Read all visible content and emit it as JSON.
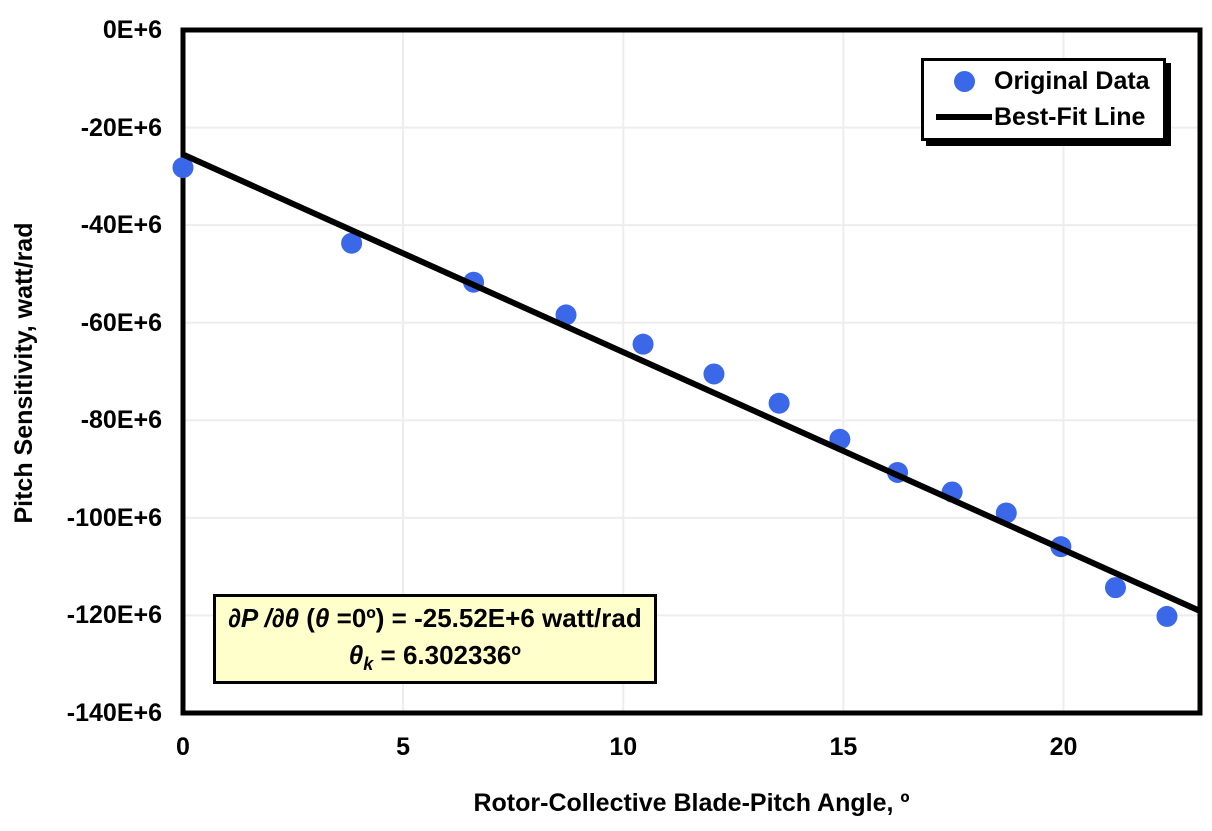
{
  "colors": {
    "marker_blue": "#3A68E8",
    "fit_line_black": "#000000",
    "gridline_gray": "#EDEDED",
    "annotation_fill": "#FFFFCC",
    "plot_border": "#000000",
    "background": "#FFFFFF"
  },
  "chart_data": {
    "type": "scatter",
    "title": "",
    "xlabel": "Rotor-Collective Blade-Pitch Angle, º",
    "ylabel": "Pitch Sensitivity, watt/rad",
    "y_unit": "E+6 watt/rad",
    "x_unit": "degrees",
    "xlim": [
      0,
      23.1
    ],
    "ylim": [
      -140,
      0
    ],
    "x_ticks": [
      0,
      5,
      10,
      15,
      20
    ],
    "x_tick_labels": [
      "0",
      "5",
      "10",
      "15",
      "20"
    ],
    "y_ticks": [
      0,
      -20,
      -40,
      -60,
      -80,
      -100,
      -120,
      -140
    ],
    "y_tick_labels": [
      "0E+6",
      "-20E+6",
      "-40E+6",
      "-60E+6",
      "-80E+6",
      "-100E+6",
      "-120E+6",
      "-140E+6"
    ],
    "grid": true,
    "legend_position": "top-right",
    "series": [
      {
        "name": "Original Data",
        "type": "scatter",
        "color": "#3A68E8",
        "x": [
          0.0,
          3.83,
          6.6,
          8.7,
          10.45,
          12.06,
          13.54,
          14.92,
          16.23,
          17.47,
          18.7,
          19.94,
          21.18,
          22.35
        ],
        "y": [
          -28.2,
          -43.7,
          -51.7,
          -58.4,
          -64.4,
          -70.5,
          -76.5,
          -83.9,
          -90.7,
          -94.7,
          -99.0,
          -105.9,
          -114.3,
          -120.2
        ]
      },
      {
        "name": "Best-Fit Line",
        "type": "line",
        "color": "#000000",
        "x": [
          0,
          23.1
        ],
        "y": [
          -25.52,
          -119.1
        ]
      }
    ]
  },
  "annotation": {
    "deriv": "∂P /∂θ ",
    "open_paren": "(",
    "theta": "θ ",
    "line1_rest": "=0º) = -25.52E+6 watt/rad",
    "theta_sym": "θ",
    "sub_k": "k",
    "line2_rest": " = 6.302336º"
  }
}
